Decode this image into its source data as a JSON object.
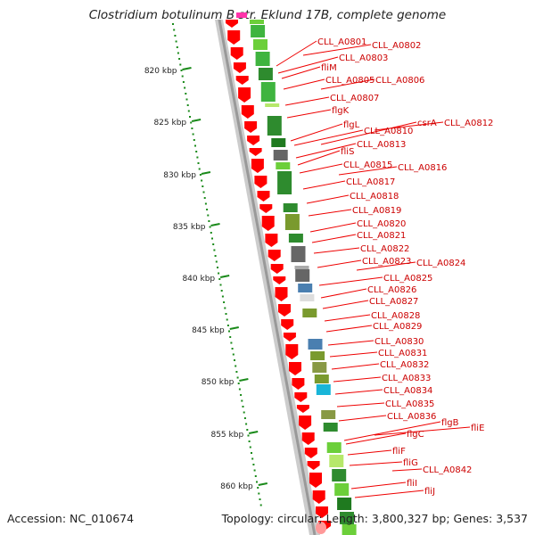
{
  "title": "Clostridium botulinum B str. Eklund 17B, complete genome",
  "footer": {
    "accession": "Accession: NC_010674",
    "summary": "Topology: circular; Length: 3,800,327 bp; Genes: 3,537"
  },
  "colors": {
    "gene_arrow": "#ff0000",
    "label_text": "#cc0000",
    "leader_line": "#ee0000",
    "tick": "#1a8a1a",
    "backbone": "#999999"
  },
  "ruler": [
    "820 kbp",
    "825 kbp",
    "830 kbp",
    "835 kbp",
    "840 kbp",
    "845 kbp",
    "850 kbp",
    "855 kbp",
    "860 kbp"
  ],
  "genes": [
    "CLL_A0801",
    "CLL_A0802",
    "CLL_A0803",
    "fliM",
    "CLL_A0805",
    "CLL_A0806",
    "CLL_A0807",
    "flgK",
    "flgL",
    "CLL_A0810",
    "csrA",
    "CLL_A0812",
    "CLL_A0813",
    "fliS",
    "CLL_A0815",
    "CLL_A0816",
    "CLL_A0817",
    "CLL_A0818",
    "CLL_A0819",
    "CLL_A0820",
    "CLL_A0821",
    "CLL_A0822",
    "CLL_A0823",
    "CLL_A0824",
    "CLL_A0825",
    "CLL_A0826",
    "CLL_A0827",
    "CLL_A0828",
    "CLL_A0829",
    "CLL_A0830",
    "CLL_A0831",
    "CLL_A0832",
    "CLL_A0833",
    "CLL_A0834",
    "CLL_A0835",
    "CLL_A0836",
    "flgB",
    "fliE",
    "flgC",
    "fliF",
    "fliG",
    "CLL_A0842",
    "fliI",
    "fliJ"
  ]
}
